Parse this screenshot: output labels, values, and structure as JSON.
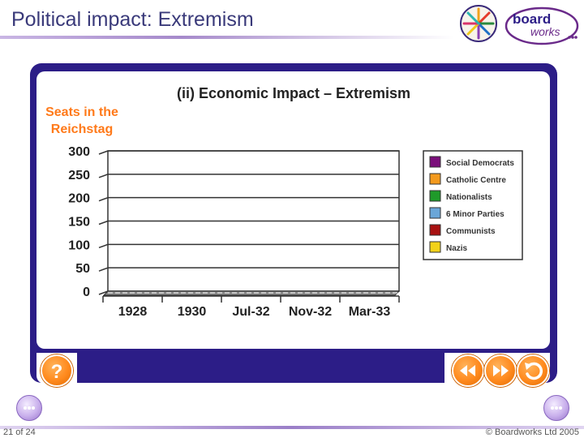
{
  "header": {
    "title": "Political impact: Extremism",
    "logo_text_1": "board",
    "logo_text_2": "works"
  },
  "footer": {
    "slide_number": "21 of 24",
    "copyright": "© Boardworks Ltd 2005"
  },
  "chart_data": {
    "type": "bar",
    "title": "(ii) Economic Impact – Extremism",
    "ylabel_line1": "Seats in the",
    "ylabel_line2": "Reichstag",
    "ylim": [
      0,
      300
    ],
    "yticks": [
      0,
      50,
      100,
      150,
      200,
      250,
      300
    ],
    "categories": [
      "1928",
      "1930",
      "Jul-32",
      "Nov-32",
      "Mar-33"
    ],
    "series": [
      {
        "name": "Social Democrats",
        "color": "#7b0f7b",
        "values": [
          0,
          0,
          0,
          0,
          0
        ]
      },
      {
        "name": "Catholic Centre",
        "color": "#f39a1e",
        "values": [
          0,
          0,
          0,
          0,
          0
        ]
      },
      {
        "name": "Nationalists",
        "color": "#1f9a2a",
        "values": [
          0,
          0,
          0,
          0,
          0
        ]
      },
      {
        "name": "6 Minor Parties",
        "color": "#6aa6d8",
        "values": [
          0,
          0,
          0,
          0,
          0
        ]
      },
      {
        "name": "Communists",
        "color": "#a81212",
        "values": [
          0,
          0,
          0,
          0,
          0
        ]
      },
      {
        "name": "Nazis",
        "color": "#f2d21a",
        "values": [
          0,
          0,
          0,
          0,
          0
        ]
      }
    ],
    "grid": true,
    "legend": "right",
    "title_color": "#222222",
    "ylabel_color": "#ff7a1a"
  },
  "controls": {
    "help_icon": "question-icon",
    "rewind_icon": "rewind-icon",
    "forward_icon": "fast-forward-icon",
    "reset_icon": "reset-icon"
  }
}
